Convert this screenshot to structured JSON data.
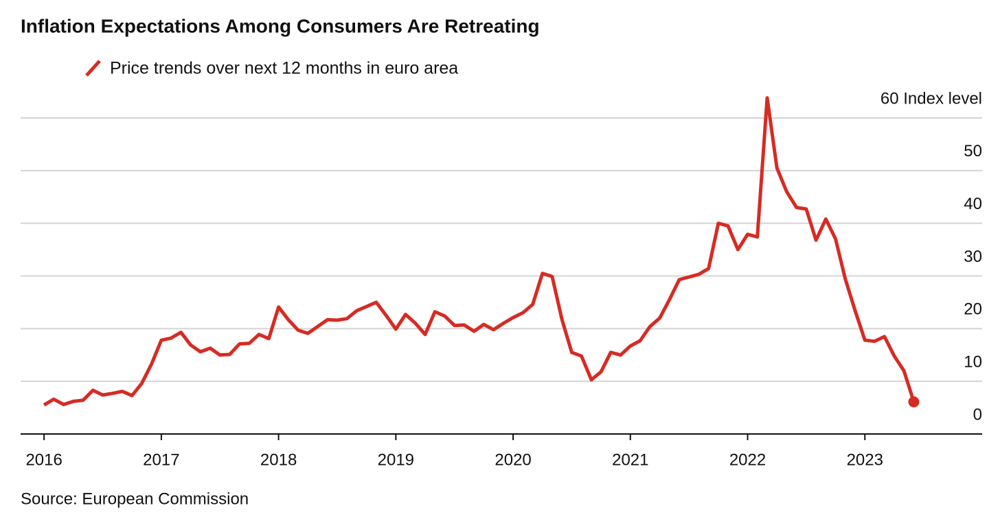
{
  "chart_data": {
    "type": "line",
    "title": "Inflation Expectations Among Consumers Are Retreating",
    "source": "Source: European Commission",
    "x": [
      2016,
      2016.083,
      2016.167,
      2016.25,
      2016.333,
      2016.417,
      2016.5,
      2016.583,
      2016.667,
      2016.75,
      2016.833,
      2016.917,
      2017,
      2017.083,
      2017.167,
      2017.25,
      2017.333,
      2017.417,
      2017.5,
      2017.583,
      2017.667,
      2017.75,
      2017.833,
      2017.917,
      2018,
      2018.083,
      2018.167,
      2018.25,
      2018.333,
      2018.417,
      2018.5,
      2018.583,
      2018.667,
      2018.75,
      2018.833,
      2018.917,
      2019,
      2019.083,
      2019.167,
      2019.25,
      2019.333,
      2019.417,
      2019.5,
      2019.583,
      2019.667,
      2019.75,
      2019.833,
      2019.917,
      2020,
      2020.083,
      2020.167,
      2020.25,
      2020.333,
      2020.417,
      2020.5,
      2020.583,
      2020.667,
      2020.75,
      2020.833,
      2020.917,
      2021,
      2021.083,
      2021.167,
      2021.25,
      2021.333,
      2021.417,
      2021.5,
      2021.583,
      2021.667,
      2021.75,
      2021.833,
      2021.917,
      2022,
      2022.083,
      2022.167,
      2022.25,
      2022.333,
      2022.417,
      2022.5,
      2022.583,
      2022.667,
      2022.75,
      2022.833,
      2022.917,
      2023,
      2023.083,
      2023.167,
      2023.25,
      2023.333,
      2023.417
    ],
    "series": [
      {
        "name": "Price trends over next 12 months in euro area",
        "color": "#d62b24",
        "values": [
          5.5,
          6.6,
          5.6,
          6.2,
          6.4,
          8.3,
          7.4,
          7.7,
          8.1,
          7.3,
          9.6,
          13.3,
          17.8,
          18.2,
          19.3,
          16.9,
          15.6,
          16.3,
          15.0,
          15.1,
          17.1,
          17.2,
          18.9,
          18.1,
          24.1,
          21.7,
          19.7,
          19.1,
          20.4,
          21.7,
          21.6,
          21.9,
          23.4,
          24.2,
          25.0,
          22.5,
          19.9,
          22.7,
          21.0,
          18.9,
          23.2,
          22.4,
          20.6,
          20.7,
          19.5,
          20.8,
          19.8,
          21.0,
          22.1,
          23.0,
          24.6,
          30.5,
          29.9,
          21.7,
          15.5,
          14.8,
          10.3,
          11.8,
          15.5,
          15.0,
          16.7,
          17.7,
          20.4,
          22.0,
          25.5,
          29.3,
          29.8,
          30.3,
          31.4,
          40.0,
          39.5,
          35.0,
          37.9,
          37.4,
          63.8,
          50.5,
          46.0,
          43.0,
          42.7,
          36.8,
          40.8,
          37.0,
          29.4,
          23.4,
          17.8,
          17.6,
          18.5,
          14.8,
          12.0,
          6.1
        ]
      }
    ],
    "xlim": [
      2015.8,
      2024
    ],
    "xticks": [
      2016,
      2017,
      2018,
      2019,
      2020,
      2021,
      2022,
      2023
    ],
    "ylim": [
      0,
      60
    ],
    "yticks": [
      0,
      10,
      20,
      30,
      40,
      50,
      {
        "value": 60,
        "label": "60 Index level"
      }
    ],
    "grid": true
  }
}
